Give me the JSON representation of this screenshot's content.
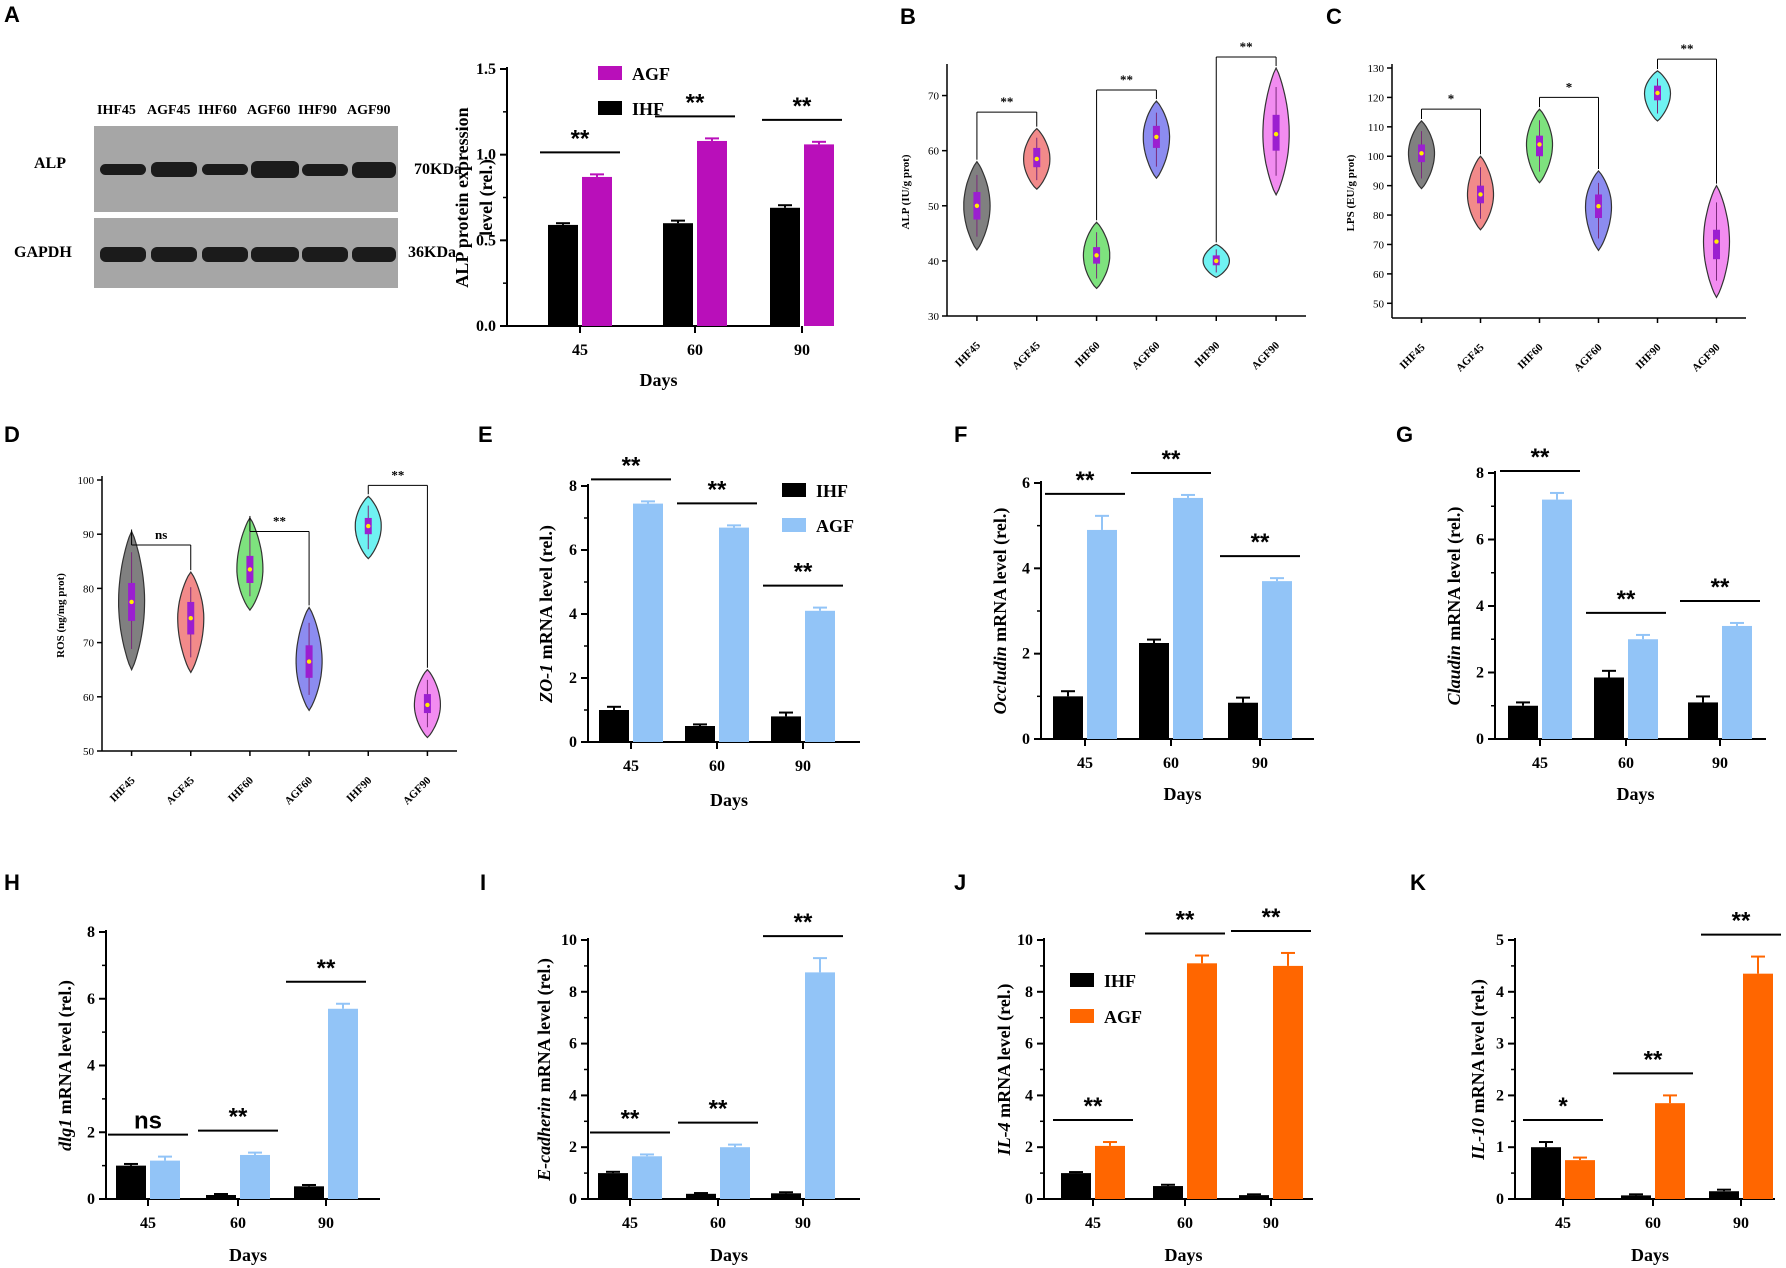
{
  "panels": {
    "A": "A",
    "B": "B",
    "C": "C",
    "D": "D",
    "E": "E",
    "F": "F",
    "G": "G",
    "H": "H",
    "I": "I",
    "J": "J",
    "K": "K"
  },
  "western_blot": {
    "lanes": [
      "IHF45",
      "AGF45",
      "IHF60",
      "AGF60",
      "IHF90",
      "AGF90"
    ],
    "rows": [
      {
        "protein": "ALP",
        "size": "70KDa",
        "intensities": [
          0.6,
          0.85,
          0.62,
          1.0,
          0.7,
          0.95
        ]
      },
      {
        "protein": "GAPDH",
        "size": "36KDa",
        "intensities": [
          0.9,
          0.92,
          0.9,
          0.92,
          0.9,
          0.92
        ]
      }
    ]
  },
  "colors": {
    "ihf": "#000000",
    "agf_magenta": "#b90fba",
    "agf_blue": "#92c4f7",
    "agf_orange": "#ff6600"
  },
  "chart_data": [
    {
      "id": "A-bar",
      "type": "bar",
      "title": "",
      "categories": [
        "45",
        "60",
        "90"
      ],
      "xlabel": "Days",
      "ylabel": "ALP protein expression level (rel.)",
      "ylim": [
        0,
        1.5
      ],
      "yticks": [
        "0.0",
        "0.5",
        "1.0",
        "1.5"
      ],
      "series": [
        {
          "name": "IHF",
          "color": "#000000",
          "values": [
            0.59,
            0.6,
            0.69
          ],
          "errors": [
            0.01,
            0.015,
            0.015
          ]
        },
        {
          "name": "AGF",
          "color": "#b90fba",
          "values": [
            0.87,
            1.08,
            1.06
          ],
          "errors": [
            0.015,
            0.015,
            0.015
          ]
        }
      ],
      "significance": [
        "**",
        "**",
        "**"
      ],
      "legend": "top-left",
      "legend_order": [
        "AGF",
        "IHF"
      ]
    },
    {
      "id": "B-violin",
      "type": "violin",
      "title": "",
      "categories": [
        "IHF45",
        "AGF45",
        "IHF60",
        "AGF60",
        "IHF90",
        "AGF90"
      ],
      "ylabel": "ALP (IU/g prot)",
      "ylim": [
        30,
        75
      ],
      "yticks": [
        "30",
        "40",
        "50",
        "60",
        "70"
      ],
      "groups": [
        {
          "median": 50,
          "q1": 47.5,
          "q3": 52.5,
          "min": 42,
          "max": 58,
          "color": "#808080"
        },
        {
          "median": 58.5,
          "q1": 57,
          "q3": 60.5,
          "min": 53,
          "max": 64,
          "color": "#f28a8a"
        },
        {
          "median": 41,
          "q1": 39.5,
          "q3": 42.5,
          "min": 35,
          "max": 47,
          "color": "#7ee27e"
        },
        {
          "median": 62.5,
          "q1": 60.5,
          "q3": 64.5,
          "min": 55,
          "max": 69,
          "color": "#8c8cf0"
        },
        {
          "median": 40,
          "q1": 39.2,
          "q3": 41,
          "min": 37,
          "max": 43,
          "color": "#6ff2f2"
        },
        {
          "median": 63,
          "q1": 60,
          "q3": 66.5,
          "min": 52,
          "max": 75,
          "color": "#f28cf0"
        }
      ],
      "comparisons": [
        {
          "a": 0,
          "b": 1,
          "label": "**",
          "y": 67
        },
        {
          "a": 2,
          "b": 3,
          "label": "**",
          "y": 71
        },
        {
          "a": 4,
          "b": 5,
          "label": "**",
          "y": 77
        }
      ]
    },
    {
      "id": "C-violin",
      "type": "violin",
      "title": "",
      "categories": [
        "IHF45",
        "AGF45",
        "IHF60",
        "AGF60",
        "IHF90",
        "AGF90"
      ],
      "ylabel": "LPS (EU/g prot)",
      "ylim": [
        45,
        130
      ],
      "yticks": [
        "50",
        "60",
        "70",
        "80",
        "90",
        "100",
        "110",
        "120",
        "130"
      ],
      "groups": [
        {
          "median": 101,
          "q1": 98,
          "q3": 104,
          "min": 89,
          "max": 112,
          "color": "#808080"
        },
        {
          "median": 87,
          "q1": 84,
          "q3": 90,
          "min": 75,
          "max": 100,
          "color": "#f28a8a"
        },
        {
          "median": 104,
          "q1": 100,
          "q3": 107,
          "min": 91,
          "max": 116,
          "color": "#7ee27e"
        },
        {
          "median": 83,
          "q1": 79,
          "q3": 87,
          "min": 68,
          "max": 95,
          "color": "#8c8cf0"
        },
        {
          "median": 121.5,
          "q1": 119,
          "q3": 124,
          "min": 112,
          "max": 129,
          "color": "#6ff2f2"
        },
        {
          "median": 71,
          "q1": 65,
          "q3": 75,
          "min": 52,
          "max": 90,
          "color": "#f28cf0"
        }
      ],
      "comparisons": [
        {
          "a": 0,
          "b": 1,
          "label": "*",
          "y": 116
        },
        {
          "a": 2,
          "b": 3,
          "label": "*",
          "y": 120
        },
        {
          "a": 4,
          "b": 5,
          "label": "**",
          "y": 133
        }
      ]
    },
    {
      "id": "D-violin",
      "type": "violin",
      "title": "",
      "categories": [
        "IHF45",
        "AGF45",
        "IHF60",
        "AGF60",
        "IHF90",
        "AGF90"
      ],
      "ylabel": "ROS (ng/mg prot)",
      "ylim": [
        50,
        100
      ],
      "yticks": [
        "50",
        "60",
        "70",
        "80",
        "90",
        "100"
      ],
      "groups": [
        {
          "median": 77.5,
          "q1": 74,
          "q3": 81,
          "min": 65,
          "max": 90.5,
          "color": "#808080"
        },
        {
          "median": 74.5,
          "q1": 71.5,
          "q3": 77.5,
          "min": 64.5,
          "max": 83,
          "color": "#f28a8a"
        },
        {
          "median": 83.5,
          "q1": 81,
          "q3": 86,
          "min": 76,
          "max": 93,
          "color": "#7ee27e"
        },
        {
          "median": 66.5,
          "q1": 63.5,
          "q3": 69.5,
          "min": 57.5,
          "max": 76.5,
          "color": "#8c8cf0"
        },
        {
          "median": 91.5,
          "q1": 90,
          "q3": 93,
          "min": 85.5,
          "max": 97,
          "color": "#6ff2f2"
        },
        {
          "median": 58.5,
          "q1": 57,
          "q3": 60.5,
          "min": 52.5,
          "max": 65,
          "color": "#f28cf0"
        }
      ],
      "comparisons": [
        {
          "a": 0,
          "b": 1,
          "label": "ns",
          "y": 88
        },
        {
          "a": 2,
          "b": 3,
          "label": "**",
          "y": 90.5
        },
        {
          "a": 4,
          "b": 5,
          "label": "**",
          "y": 99
        }
      ]
    },
    {
      "id": "E-bar",
      "type": "bar",
      "title": "",
      "categories": [
        "45",
        "60",
        "90"
      ],
      "xlabel": "Days",
      "ylabel_gene": "ZO-1",
      "ylabel_rest": " mRNA level (rel.)",
      "ylim": [
        0,
        8
      ],
      "yticks": [
        "0",
        "2",
        "4",
        "6",
        "8"
      ],
      "series": [
        {
          "name": "IHF",
          "color": "#000000",
          "values": [
            1.0,
            0.5,
            0.8
          ],
          "errors": [
            0.1,
            0.05,
            0.12
          ]
        },
        {
          "name": "AGF",
          "color": "#92c4f7",
          "values": [
            7.45,
            6.7,
            4.1
          ],
          "errors": [
            0.07,
            0.07,
            0.1
          ]
        }
      ],
      "significance": [
        "**",
        "**",
        "**"
      ],
      "legend": "top-right",
      "legend_order": [
        "IHF",
        "AGF"
      ]
    },
    {
      "id": "F-bar",
      "type": "bar",
      "title": "",
      "categories": [
        "45",
        "60",
        "90"
      ],
      "xlabel": "Days",
      "ylabel_gene": "Occludin",
      "ylabel_rest": " mRNA level (rel.)",
      "ylim": [
        0,
        6
      ],
      "yticks": [
        "0",
        "2",
        "4",
        "6"
      ],
      "series": [
        {
          "name": "IHF",
          "color": "#000000",
          "values": [
            1.0,
            2.25,
            0.85
          ],
          "errors": [
            0.12,
            0.08,
            0.12
          ]
        },
        {
          "name": "AGF",
          "color": "#92c4f7",
          "values": [
            4.9,
            5.65,
            3.7
          ],
          "errors": [
            0.33,
            0.07,
            0.07
          ]
        }
      ],
      "significance": [
        "**",
        "**",
        "**"
      ]
    },
    {
      "id": "G-bar",
      "type": "bar",
      "title": "",
      "categories": [
        "45",
        "60",
        "90"
      ],
      "xlabel": "Days",
      "ylabel_gene": "Claudin",
      "ylabel_rest": " mRNA level (rel.)",
      "ylim": [
        0,
        8
      ],
      "yticks": [
        "0",
        "2",
        "4",
        "6",
        "8"
      ],
      "series": [
        {
          "name": "IHF",
          "color": "#000000",
          "values": [
            1.0,
            1.85,
            1.1
          ],
          "errors": [
            0.1,
            0.2,
            0.18
          ]
        },
        {
          "name": "AGF",
          "color": "#92c4f7",
          "values": [
            7.2,
            3.0,
            3.4
          ],
          "errors": [
            0.2,
            0.13,
            0.09
          ]
        }
      ],
      "significance": [
        "**",
        "**",
        "**"
      ]
    },
    {
      "id": "H-bar",
      "type": "bar",
      "title": "",
      "categories": [
        "45",
        "60",
        "90"
      ],
      "xlabel": "Days",
      "ylabel_gene": "dlg1",
      "ylabel_rest": " mRNA level (rel.)",
      "ylim": [
        0,
        8
      ],
      "yticks": [
        "0",
        "2",
        "4",
        "6",
        "8"
      ],
      "series": [
        {
          "name": "IHF",
          "color": "#000000",
          "values": [
            1.0,
            0.12,
            0.38
          ],
          "errors": [
            0.05,
            0.03,
            0.04
          ]
        },
        {
          "name": "AGF",
          "color": "#92c4f7",
          "values": [
            1.15,
            1.32,
            5.7
          ],
          "errors": [
            0.12,
            0.07,
            0.15
          ]
        }
      ],
      "significance": [
        "ns",
        "**",
        "**"
      ]
    },
    {
      "id": "I-bar",
      "type": "bar",
      "title": "",
      "categories": [
        "45",
        "60",
        "90"
      ],
      "xlabel": "Days",
      "ylabel_gene": "E-cadherin",
      "ylabel_rest": " mRNA level (rel.)",
      "ylim": [
        0,
        10
      ],
      "yticks": [
        "0",
        "2",
        "4",
        "6",
        "8",
        "10"
      ],
      "series": [
        {
          "name": "IHF",
          "color": "#000000",
          "values": [
            1.0,
            0.2,
            0.22
          ],
          "errors": [
            0.05,
            0.03,
            0.04
          ]
        },
        {
          "name": "AGF",
          "color": "#92c4f7",
          "values": [
            1.65,
            2.0,
            8.75
          ],
          "errors": [
            0.07,
            0.1,
            0.55
          ]
        }
      ],
      "significance": [
        "**",
        "**",
        "**"
      ]
    },
    {
      "id": "J-bar",
      "type": "bar",
      "title": "",
      "categories": [
        "45",
        "60",
        "90"
      ],
      "xlabel": "Days",
      "ylabel_gene": "IL-4",
      "ylabel_rest": " mRNA level (rel.)",
      "ylim": [
        0,
        10
      ],
      "yticks": [
        "0",
        "2",
        "4",
        "6",
        "8",
        "10"
      ],
      "series": [
        {
          "name": "IHF",
          "color": "#000000",
          "values": [
            1.0,
            0.5,
            0.15
          ],
          "errors": [
            0.04,
            0.05,
            0.03
          ]
        },
        {
          "name": "AGF",
          "color": "#ff6600",
          "values": [
            2.05,
            9.1,
            9.0
          ],
          "errors": [
            0.15,
            0.3,
            0.5
          ]
        }
      ],
      "significance": [
        "**",
        "**",
        "**"
      ],
      "legend": "top-left",
      "legend_order": [
        "IHF",
        "AGF"
      ]
    },
    {
      "id": "K-bar",
      "type": "bar",
      "title": "",
      "categories": [
        "45",
        "60",
        "90"
      ],
      "xlabel": "Days",
      "ylabel_gene": "IL-10",
      "ylabel_rest": " mRNA level (rel.)",
      "ylim": [
        0,
        5
      ],
      "yticks": [
        "0",
        "1",
        "2",
        "3",
        "4",
        "5"
      ],
      "series": [
        {
          "name": "IHF",
          "color": "#000000",
          "values": [
            1.0,
            0.07,
            0.15
          ],
          "errors": [
            0.1,
            0.02,
            0.03
          ]
        },
        {
          "name": "AGF",
          "color": "#ff6600",
          "values": [
            0.75,
            1.85,
            4.35
          ],
          "errors": [
            0.05,
            0.15,
            0.33
          ]
        }
      ],
      "significance": [
        "*",
        "**",
        "**"
      ]
    }
  ]
}
